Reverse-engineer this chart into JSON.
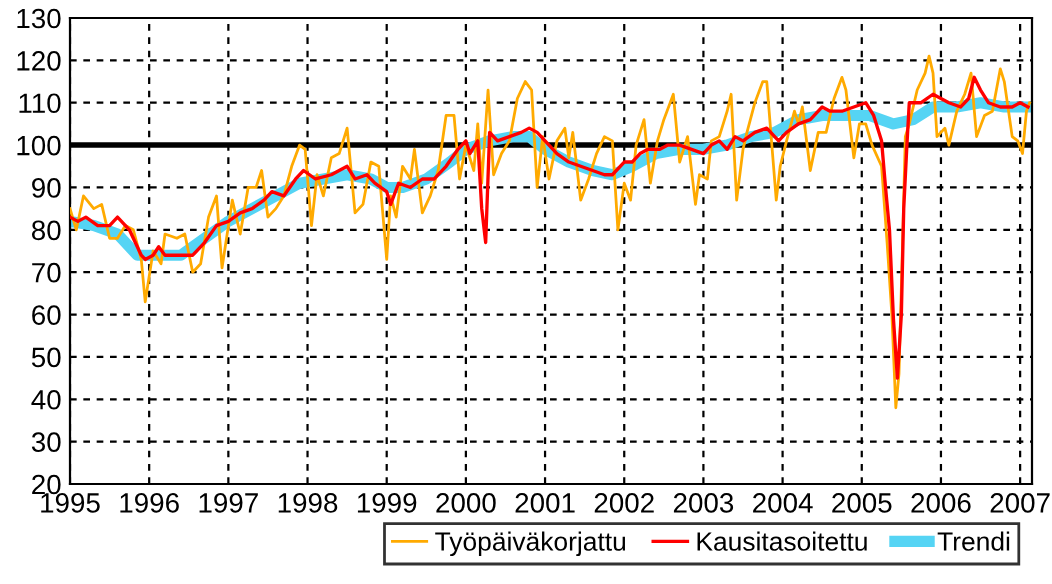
{
  "chart_data": {
    "type": "line",
    "xlim": [
      1995,
      2007.15
    ],
    "ylim": [
      20,
      130
    ],
    "xticks": [
      1995,
      1996,
      1997,
      1998,
      1999,
      2000,
      2001,
      2002,
      2003,
      2004,
      2005,
      2006,
      2007
    ],
    "yticks": [
      20,
      30,
      40,
      50,
      60,
      70,
      80,
      90,
      100,
      110,
      120,
      130
    ],
    "grid": true,
    "legend": "bottom right",
    "line_style": "solid",
    "marker": "none",
    "ref_lines": [
      {
        "axis": "y",
        "value": 100,
        "color": "#000000"
      }
    ],
    "series": [
      {
        "name": "Työpäiväkorjattu",
        "color": "#ffaa00",
        "x": [
          1995.0,
          1995.08,
          1995.17,
          1995.3,
          1995.4,
          1995.5,
          1995.6,
          1995.7,
          1995.8,
          1995.9,
          1995.95,
          1996.05,
          1996.15,
          1996.2,
          1996.35,
          1996.45,
          1996.55,
          1996.65,
          1996.75,
          1996.85,
          1996.92,
          1997.05,
          1997.15,
          1997.25,
          1997.35,
          1997.42,
          1997.5,
          1997.6,
          1997.7,
          1997.8,
          1997.9,
          1997.97,
          1998.05,
          1998.12,
          1998.2,
          1998.3,
          1998.4,
          1998.5,
          1998.6,
          1998.7,
          1998.8,
          1998.9,
          1999.0,
          1999.05,
          1999.12,
          1999.2,
          1999.3,
          1999.35,
          1999.45,
          1999.55,
          1999.65,
          1999.75,
          1999.85,
          1999.92,
          2000.0,
          2000.1,
          2000.15,
          2000.2,
          2000.28,
          2000.35,
          2000.45,
          2000.55,
          2000.65,
          2000.75,
          2000.83,
          2000.9,
          2000.97,
          2001.05,
          2001.15,
          2001.25,
          2001.3,
          2001.35,
          2001.45,
          2001.55,
          2001.65,
          2001.75,
          2001.85,
          2001.92,
          2002.0,
          2002.08,
          2002.15,
          2002.25,
          2002.33,
          2002.42,
          2002.5,
          2002.58,
          2002.62,
          2002.7,
          2002.8,
          2002.9,
          2002.95,
          2003.05,
          2003.1,
          2003.2,
          2003.3,
          2003.35,
          2003.42,
          2003.5,
          2003.55,
          2003.65,
          2003.75,
          2003.8,
          2003.92,
          2003.97,
          2004.05,
          2004.15,
          2004.2,
          2004.25,
          2004.35,
          2004.45,
          2004.55,
          2004.65,
          2004.75,
          2004.8,
          2004.9,
          2004.97,
          2005.05,
          2005.13,
          2005.25,
          2005.32,
          2005.38,
          2005.43,
          2005.47,
          2005.52,
          2005.55,
          2005.6,
          2005.7,
          2005.8,
          2005.85,
          2005.9,
          2005.95,
          2006.05,
          2006.1,
          2006.2,
          2006.3,
          2006.38,
          2006.45,
          2006.55,
          2006.65,
          2006.75,
          2006.8,
          2006.9,
          2006.97,
          2007.03,
          2007.08,
          2007.12
        ],
        "values": [
          85,
          80,
          88,
          85,
          86,
          78,
          78,
          81,
          80,
          73,
          63,
          75,
          72,
          79,
          78,
          79,
          70,
          72,
          83,
          88,
          71,
          87,
          79,
          90,
          90,
          94,
          83,
          85,
          88,
          95,
          100,
          99,
          81,
          93,
          88,
          97,
          98,
          104,
          84,
          86,
          96,
          95,
          73,
          88,
          83,
          95,
          92,
          99,
          84,
          88,
          94,
          107,
          107,
          92,
          100,
          94,
          105,
          91,
          113,
          93,
          98,
          101,
          111,
          115,
          113,
          90,
          102,
          92,
          101,
          104,
          97,
          103,
          87,
          92,
          98,
          102,
          101,
          80,
          91,
          87,
          100,
          106,
          91,
          101,
          106,
          110,
          112,
          96,
          102,
          86,
          93,
          92,
          101,
          102,
          108,
          112,
          87,
          99,
          103,
          110,
          115,
          115,
          87,
          95,
          101,
          108,
          105,
          109,
          94,
          103,
          103,
          111,
          116,
          113,
          97,
          105,
          105,
          100,
          95,
          77,
          60,
          38,
          46,
          80,
          102,
          105,
          113,
          117,
          121,
          117,
          102,
          104,
          100,
          108,
          112,
          117,
          102,
          107,
          108,
          118,
          115,
          102,
          101,
          98,
          108,
          110
        ]
      },
      {
        "name": "Kausitasoitettu",
        "color": "#ff0000",
        "x": [
          1995.0,
          1995.1,
          1995.2,
          1995.35,
          1995.5,
          1995.6,
          1995.75,
          1995.9,
          1995.95,
          1996.05,
          1996.12,
          1996.2,
          1996.4,
          1996.55,
          1996.7,
          1996.85,
          1997.0,
          1997.15,
          1997.3,
          1997.45,
          1997.55,
          1997.7,
          1997.85,
          1997.95,
          1998.1,
          1998.3,
          1998.5,
          1998.6,
          1998.75,
          1998.85,
          1999.0,
          1999.05,
          1999.15,
          1999.3,
          1999.45,
          1999.6,
          1999.75,
          1999.9,
          2000.0,
          2000.05,
          2000.15,
          2000.2,
          2000.25,
          2000.3,
          2000.4,
          2000.55,
          2000.7,
          2000.8,
          2000.9,
          2001.0,
          2001.15,
          2001.3,
          2001.45,
          2001.6,
          2001.75,
          2001.85,
          2002.0,
          2002.1,
          2002.2,
          2002.3,
          2002.45,
          2002.55,
          2002.7,
          2002.85,
          2003.0,
          2003.1,
          2003.2,
          2003.3,
          2003.4,
          2003.5,
          2003.65,
          2003.8,
          2003.95,
          2004.05,
          2004.2,
          2004.35,
          2004.5,
          2004.6,
          2004.75,
          2004.9,
          2005.05,
          2005.15,
          2005.25,
          2005.3,
          2005.35,
          2005.4,
          2005.45,
          2005.5,
          2005.53,
          2005.57,
          2005.6,
          2005.75,
          2005.9,
          2006.0,
          2006.1,
          2006.25,
          2006.35,
          2006.42,
          2006.5,
          2006.6,
          2006.75,
          2006.9,
          2007.0,
          2007.1
        ],
        "values": [
          83,
          82,
          83,
          81,
          81,
          83,
          80,
          74,
          73,
          74,
          76,
          74,
          74,
          74,
          77,
          81,
          82,
          84,
          85,
          87,
          89,
          88,
          92,
          94,
          92,
          93,
          95,
          92,
          93,
          91,
          89,
          86,
          91,
          90,
          92,
          92,
          95,
          99,
          101,
          98,
          101,
          85,
          77,
          103,
          101,
          102,
          103,
          104,
          103,
          101,
          98,
          96,
          95,
          94,
          93,
          93,
          96,
          96,
          98,
          99,
          99,
          100,
          100,
          99,
          98,
          100,
          101,
          99,
          102,
          101,
          103,
          104,
          101,
          103,
          105,
          106,
          109,
          108,
          108,
          109,
          110,
          107,
          101,
          90,
          80,
          59,
          45,
          60,
          85,
          100,
          110,
          110,
          112,
          111,
          110,
          109,
          111,
          116,
          113,
          110,
          109,
          109,
          110,
          109
        ]
      },
      {
        "name": "Trendi",
        "color": "#55d4f4",
        "x": [
          1995.0,
          1995.3,
          1995.6,
          1995.85,
          1996.1,
          1996.4,
          1996.7,
          1997.0,
          1997.3,
          1997.6,
          1997.9,
          1998.2,
          1998.5,
          1998.8,
          1999.0,
          1999.2,
          1999.5,
          1999.8,
          2000.0,
          2000.3,
          2000.6,
          2000.8,
          2001.0,
          2001.3,
          2001.6,
          2001.85,
          2002.1,
          2002.4,
          2002.7,
          2003.0,
          2003.3,
          2003.6,
          2003.9,
          2004.2,
          2004.5,
          2004.8,
          2005.1,
          2005.4,
          2005.65,
          2005.9,
          2006.2,
          2006.5,
          2006.8,
          2007.1
        ],
        "values": [
          82,
          81,
          79,
          74,
          74,
          74,
          78,
          82,
          85,
          88,
          91,
          92,
          93,
          92,
          90,
          90,
          92,
          96,
          99,
          101,
          102,
          102,
          99,
          96,
          94,
          93,
          95,
          98,
          99,
          99,
          100,
          102,
          103,
          106,
          107,
          107,
          107,
          105,
          106,
          109,
          109,
          110,
          109,
          109
        ]
      }
    ]
  }
}
